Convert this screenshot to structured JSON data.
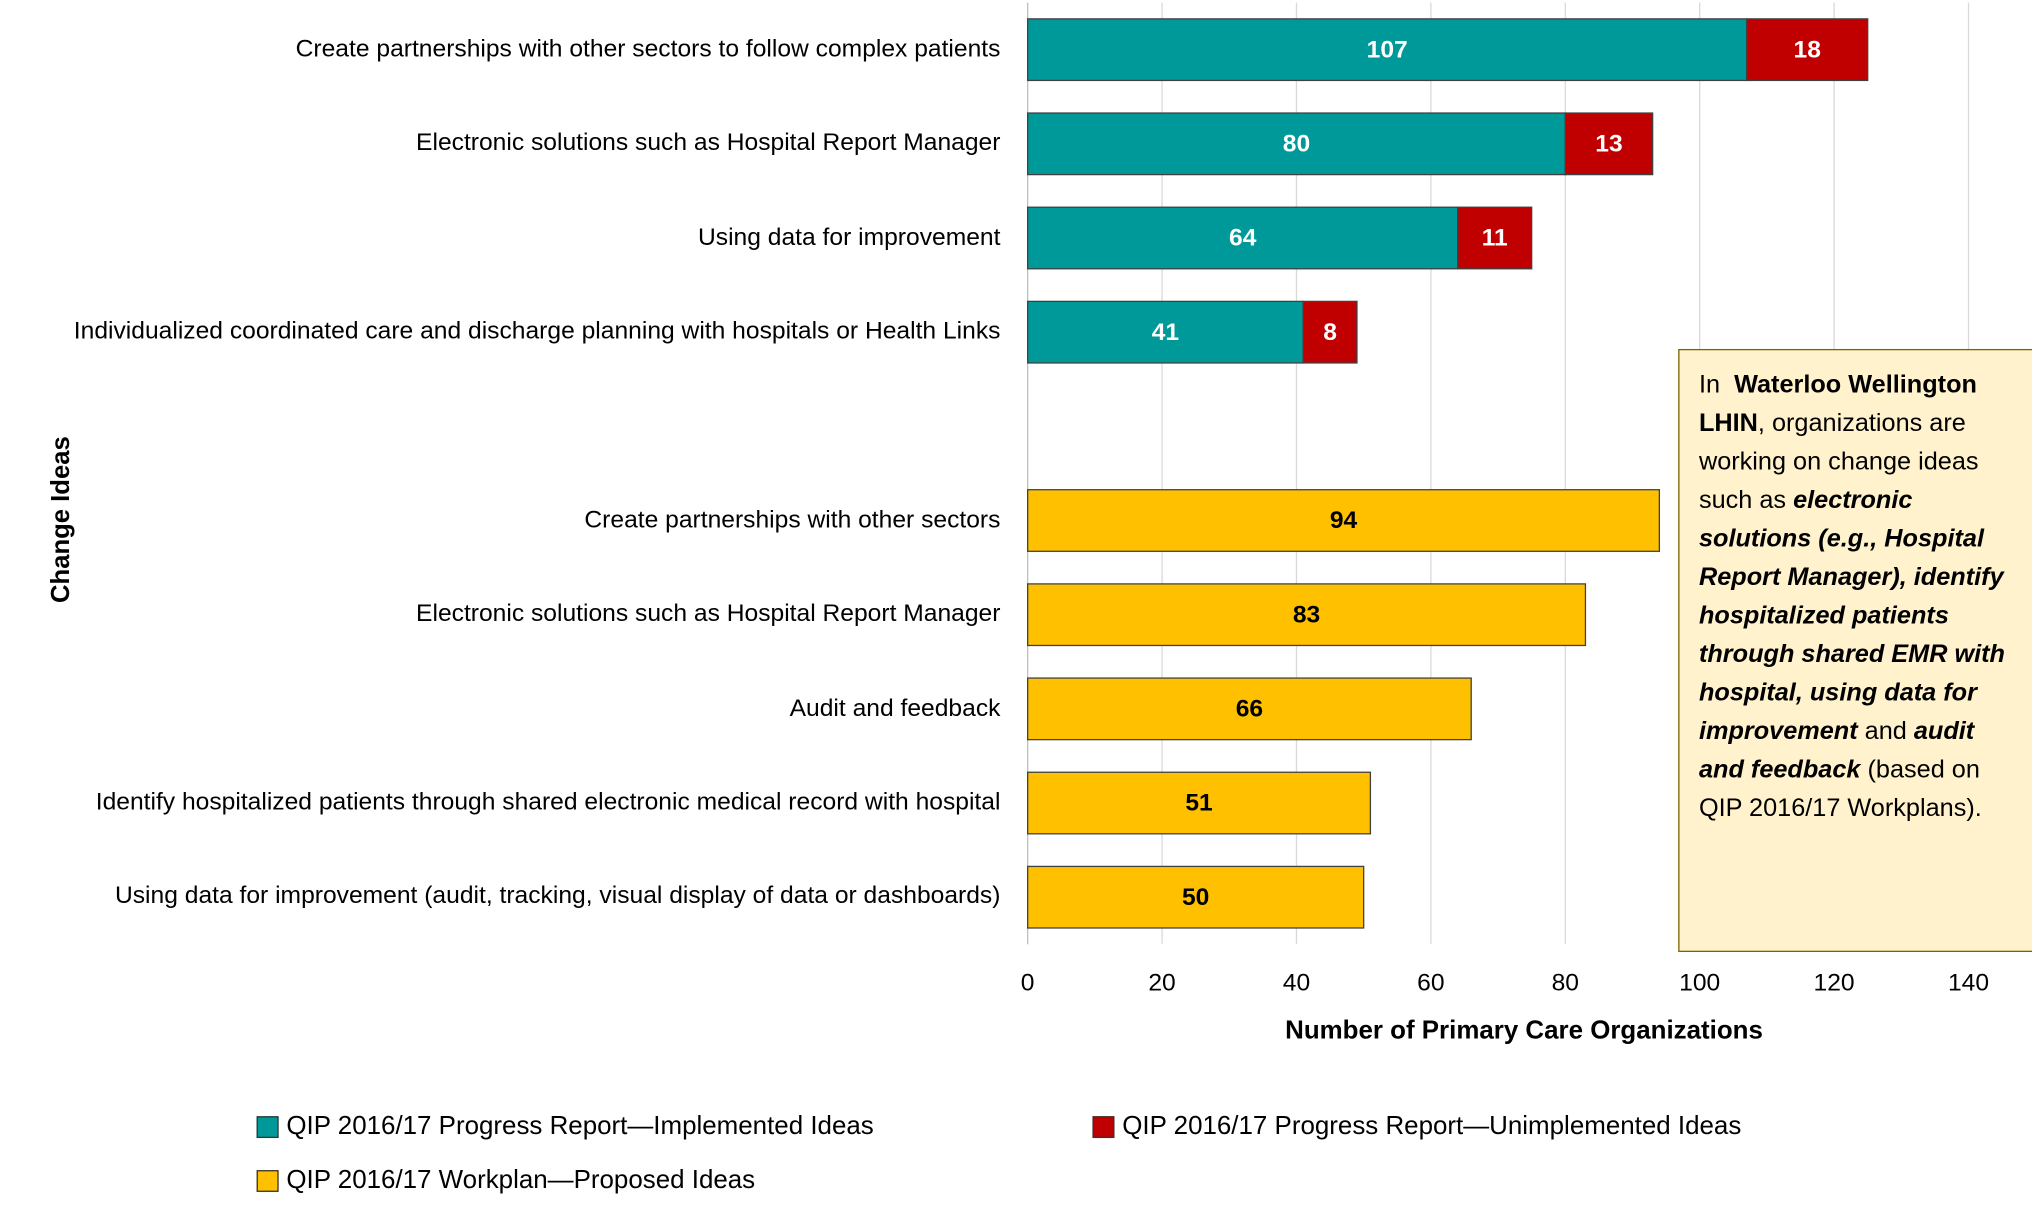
{
  "chart_data": {
    "type": "stacked-bar-horizontal",
    "x_label": "Number of Primary Care Organizations",
    "y_label": "Change Ideas",
    "categories": [
      "Create partnerships with other sectors to follow complex patients",
      "Electronic solutions such as Hospital Report Manager",
      "Using data for improvement",
      "Individualized coordinated care and discharge planning with hospitals or Health Links",
      null,
      "Create partnerships with other sectors",
      "Electronic solutions such as Hospital Report Manager",
      "Audit and feedback",
      "Identify hospitalized patients through shared electronic medical record with hospital",
      "Using data for improvement (audit, tracking, visual display of data or dashboards)"
    ],
    "series": [
      {
        "name": "QIP 2016/17 Progress Report—Implemented Ideas",
        "color": "#009999",
        "label_color": "#ffffff",
        "values": [
          107,
          80,
          64,
          41,
          null,
          null,
          null,
          null,
          null,
          null
        ]
      },
      {
        "name": "QIP 2016/17 Progress Report—Unimplemented Ideas",
        "color": "#c00000",
        "label_color": "#ffffff",
        "values": [
          18,
          13,
          11,
          8,
          null,
          null,
          null,
          null,
          null,
          null
        ]
      },
      {
        "name": "QIP 2016/17 Workplan—Proposed Ideas",
        "color": "#ffc000",
        "label_color": "#000000",
        "values": [
          null,
          null,
          null,
          null,
          null,
          94,
          83,
          66,
          51,
          50
        ]
      }
    ],
    "xlim": [
      0,
      140
    ],
    "xticks": [
      0,
      20,
      40,
      60,
      80,
      100,
      120,
      140
    ],
    "grid": true,
    "annotation": [
      {
        "text": "In  "
      },
      {
        "text": "Waterloo Wellington LHIN",
        "bold": true
      },
      {
        "text": ", organizations are working on change ideas such as "
      },
      {
        "text": "electronic solutions (e.g., Hospital Report Manager), identify hospitalized patients through shared EMR with hospital, using data for improvement",
        "bold": true,
        "italic": true
      },
      {
        "text": " and "
      },
      {
        "text": "audit and feedback",
        "bold": true,
        "italic": true
      },
      {
        "text": " (based on QIP 2016/17 Workplans)."
      }
    ]
  }
}
